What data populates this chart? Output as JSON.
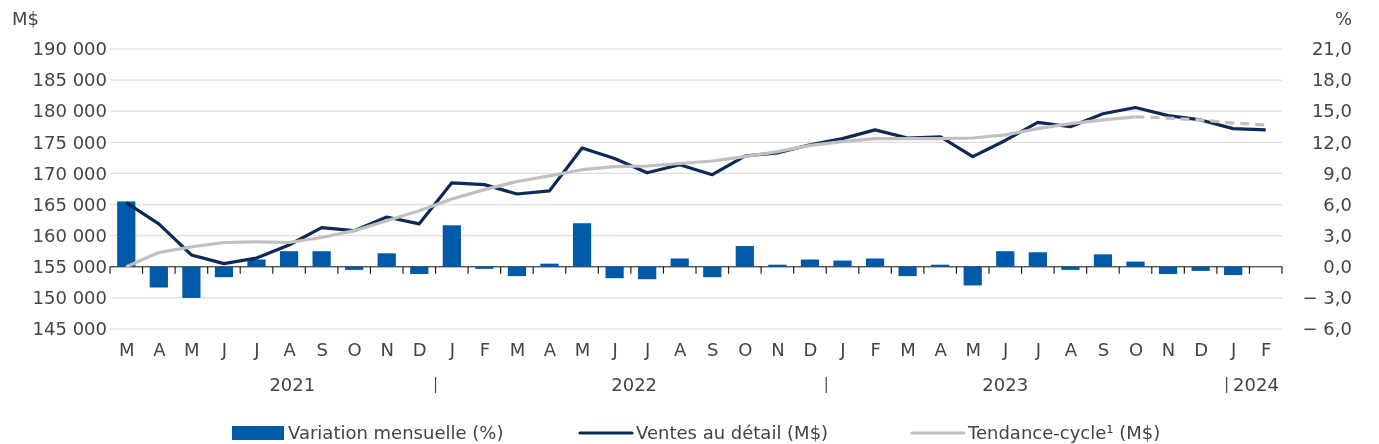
{
  "chart_data": {
    "type": "line",
    "ylabel": "M$",
    "y2label": "%",
    "categories": [
      "M",
      "A",
      "M",
      "J",
      "J",
      "A",
      "S",
      "O",
      "N",
      "D",
      "J",
      "F",
      "M",
      "A",
      "M",
      "J",
      "J",
      "A",
      "S",
      "O",
      "N",
      "D",
      "J",
      "F",
      "M",
      "A",
      "M",
      "J",
      "J",
      "A",
      "S",
      "O",
      "N",
      "D",
      "J",
      "F"
    ],
    "ylim": [
      145000,
      190000
    ],
    "yticks": [
      {
        "value": 145000,
        "label": "145 000"
      },
      {
        "value": 150000,
        "label": "150 000"
      },
      {
        "value": 155000,
        "label": "155 000"
      },
      {
        "value": 160000,
        "label": "160 000"
      },
      {
        "value": 165000,
        "label": "165 000"
      },
      {
        "value": 170000,
        "label": "170 000"
      },
      {
        "value": 175000,
        "label": "175 000"
      },
      {
        "value": 180000,
        "label": "180 000"
      },
      {
        "value": 185000,
        "label": "185 000"
      },
      {
        "value": 190000,
        "label": "190 000"
      }
    ],
    "y2lim": [
      -6,
      21
    ],
    "y2ticks": [
      {
        "value": -6,
        "label": "− 6,0"
      },
      {
        "value": -3,
        "label": "− 3,0"
      },
      {
        "value": 0,
        "label": "0,0"
      },
      {
        "value": 3,
        "label": "3,0"
      },
      {
        "value": 6,
        "label": "6,0"
      },
      {
        "value": 9,
        "label": "9,0"
      },
      {
        "value": 12,
        "label": "12,0"
      },
      {
        "value": 15,
        "label": "15,0"
      },
      {
        "value": 18,
        "label": "18,0"
      },
      {
        "value": 21,
        "label": "21,0"
      }
    ],
    "grid": "y",
    "legend": "bottom",
    "marker": "none",
    "annotations": [
      "2021",
      "2022",
      "2023",
      "2024"
    ],
    "series": [
      {
        "name": "Variation mensuelle (%)",
        "type": "bar",
        "axis": "y2",
        "color": "#005aa8",
        "values": [
          6.3,
          -2.0,
          -3.0,
          -1.0,
          0.7,
          1.5,
          1.5,
          -0.3,
          1.3,
          -0.7,
          4.0,
          -0.2,
          -0.9,
          0.3,
          4.2,
          -1.1,
          -1.2,
          0.8,
          -1.0,
          2.0,
          0.2,
          0.7,
          0.6,
          0.8,
          -0.9,
          0.2,
          -1.8,
          1.5,
          1.4,
          -0.3,
          1.2,
          0.5,
          -0.7,
          -0.4,
          -0.8,
          0.0
        ]
      },
      {
        "name": "Ventes au détail (M$)",
        "color": "#0d2a56",
        "line_style": "solid",
        "values": [
          165300,
          161900,
          156900,
          155500,
          156400,
          158500,
          161300,
          160800,
          163000,
          161900,
          168500,
          168200,
          166700,
          167200,
          174100,
          172400,
          170100,
          171400,
          169800,
          172800,
          173300,
          174600,
          175600,
          177000,
          175700,
          175900,
          172700,
          175300,
          178200,
          177500,
          179600,
          180600,
          179300,
          178600,
          177200,
          177000
        ]
      },
      {
        "name": "Tendance-cycle¹ (M$)",
        "color": "#c0c0c0",
        "line_style": "solid",
        "values": [
          155000,
          157300,
          158200,
          158900,
          159000,
          158900,
          159700,
          160800,
          162400,
          164000,
          165900,
          167400,
          168700,
          169600,
          170600,
          171100,
          171200,
          171600,
          172000,
          172700,
          173500,
          174500,
          175100,
          175600,
          175600,
          175600,
          175700,
          176200,
          177200,
          178000,
          178600,
          179100,
          null,
          null,
          null,
          null
        ]
      },
      {
        "color": "#c0c0c0",
        "line_style": "dashed",
        "values": [
          null,
          null,
          null,
          null,
          null,
          null,
          null,
          null,
          null,
          null,
          null,
          null,
          null,
          null,
          null,
          null,
          null,
          null,
          null,
          null,
          null,
          null,
          null,
          null,
          null,
          null,
          null,
          null,
          null,
          null,
          null,
          179100,
          178900,
          178600,
          178100,
          177800
        ]
      }
    ]
  }
}
